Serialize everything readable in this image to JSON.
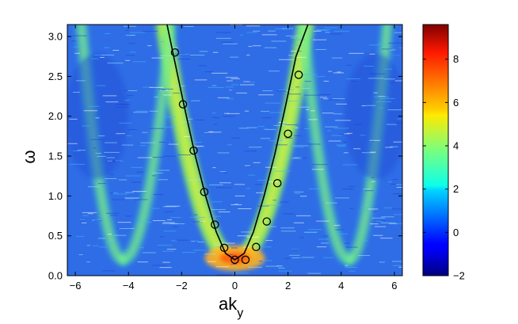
{
  "chart_data": {
    "type": "heatmap",
    "title": "",
    "xlabel": {
      "main": "ak",
      "sub": "y"
    },
    "ylabel": "ω",
    "xlim": [
      -6.3,
      6.3
    ],
    "ylim": [
      0.0,
      3.15
    ],
    "x_ticks": [
      -6,
      -4,
      -2,
      0,
      2,
      4,
      6
    ],
    "x_tick_labels": [
      "−6",
      "−4",
      "−2",
      "0",
      "2",
      "4",
      "6"
    ],
    "y_ticks": [
      0.0,
      0.5,
      1.0,
      1.5,
      2.0,
      2.5,
      3.0
    ],
    "y_tick_labels": [
      "0.0",
      "0.5",
      "1.0",
      "1.5",
      "2.0",
      "2.5",
      "3.0"
    ],
    "colorbar": {
      "range": [
        -2,
        9.6
      ],
      "ticks": [
        -2,
        0,
        2,
        4,
        6,
        8
      ],
      "tick_labels": [
        "−2",
        "0",
        "2",
        "4",
        "6",
        "8"
      ],
      "colormap": "jet"
    },
    "fit_curve": {
      "color": "#000000",
      "x": [
        -2.55,
        -2.3,
        -1.9,
        -1.5,
        -1.1,
        -0.7,
        -0.35,
        0.0,
        0.35,
        0.7,
        1.1,
        1.5,
        1.9,
        2.3,
        2.75
      ],
      "y": [
        3.15,
        2.75,
        2.12,
        1.52,
        1.0,
        0.55,
        0.28,
        0.2,
        0.28,
        0.55,
        1.0,
        1.52,
        2.12,
        2.75,
        3.15
      ]
    },
    "markers": {
      "style": "open-circle",
      "color": "#000000",
      "x": [
        -2.25,
        -1.95,
        -1.55,
        -1.15,
        -0.75,
        -0.4,
        0.0,
        0.4,
        0.8,
        1.2,
        1.6,
        2.0,
        2.4
      ],
      "y": [
        2.8,
        2.15,
        1.57,
        1.05,
        0.64,
        0.35,
        0.2,
        0.2,
        0.36,
        0.68,
        1.16,
        1.78,
        2.52
      ]
    }
  }
}
